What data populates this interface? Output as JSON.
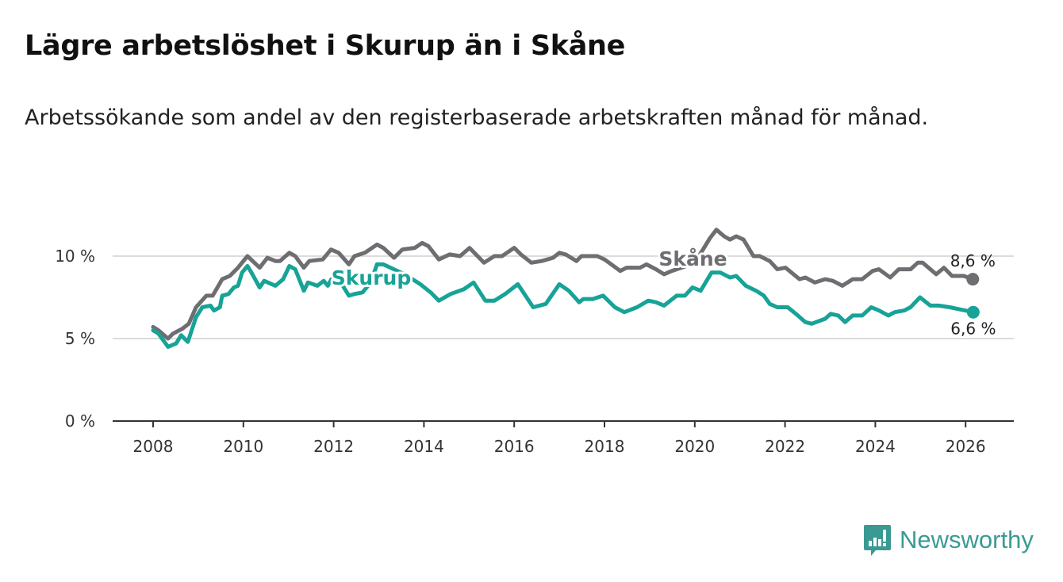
{
  "title": "Lägre arbetslöshet i Skurup än i Skåne",
  "subtitle": "Arbetssökande som andel av den registerbaserade arbetskraften månad för månad.",
  "brand": {
    "name": "Newsworthy",
    "color": "#3a9a93",
    "icon": "chart-speech-bubble-icon"
  },
  "chart_data": {
    "type": "line",
    "title": "Lägre arbetslöshet i Skurup än i Skåne",
    "xlabel": "",
    "ylabel": "",
    "xlim": [
      2007.8,
      2027.0
    ],
    "ylim": [
      0,
      12
    ],
    "grid": true,
    "x_ticks": [
      2008,
      2010,
      2012,
      2014,
      2016,
      2018,
      2020,
      2022,
      2024,
      2026
    ],
    "x_tick_labels": [
      "2008",
      "2010",
      "2012",
      "2014",
      "2016",
      "2018",
      "2020",
      "2022",
      "2024",
      "2026"
    ],
    "y_ticks": [
      0,
      5,
      10
    ],
    "y_tick_labels": [
      "0 %",
      "5 %",
      "10 %"
    ],
    "series": [
      {
        "name": "Skåne",
        "color": "#6d6d72",
        "end_label": "8,6 %",
        "x": [
          2008.0,
          2008.12,
          2008.33,
          2008.44,
          2008.65,
          2008.79,
          2008.95,
          2009.18,
          2009.32,
          2009.53,
          2009.7,
          2009.88,
          2010.09,
          2010.36,
          2010.53,
          2010.71,
          2010.81,
          2011.02,
          2011.15,
          2011.34,
          2011.46,
          2011.76,
          2011.94,
          2012.11,
          2012.34,
          2012.46,
          2012.69,
          2012.96,
          2013.1,
          2013.34,
          2013.52,
          2013.8,
          2013.96,
          2014.1,
          2014.33,
          2014.57,
          2014.8,
          2015.01,
          2015.33,
          2015.56,
          2015.73,
          2016.0,
          2016.15,
          2016.38,
          2016.61,
          2016.86,
          2017.0,
          2017.14,
          2017.38,
          2017.49,
          2017.84,
          2018.0,
          2018.35,
          2018.49,
          2018.79,
          2018.93,
          2019.14,
          2019.32,
          2019.49,
          2019.81,
          2020.07,
          2020.34,
          2020.48,
          2020.65,
          2020.78,
          2020.92,
          2021.08,
          2021.3,
          2021.44,
          2021.66,
          2021.83,
          2022.01,
          2022.32,
          2022.45,
          2022.66,
          2022.89,
          2023.06,
          2023.27,
          2023.5,
          2023.71,
          2023.94,
          2024.08,
          2024.33,
          2024.52,
          2024.78,
          2024.94,
          2025.05,
          2025.35,
          2025.52,
          2025.7,
          2025.96,
          2026.16
        ],
        "values": [
          5.7,
          5.5,
          5.0,
          5.3,
          5.6,
          5.9,
          6.9,
          7.6,
          7.6,
          8.6,
          8.8,
          9.3,
          10.0,
          9.3,
          9.9,
          9.7,
          9.7,
          10.2,
          10.0,
          9.3,
          9.7,
          9.8,
          10.4,
          10.2,
          9.5,
          10.0,
          10.2,
          10.7,
          10.5,
          9.9,
          10.4,
          10.5,
          10.8,
          10.6,
          9.8,
          10.1,
          10.0,
          10.5,
          9.6,
          10.0,
          10.0,
          10.5,
          10.1,
          9.6,
          9.7,
          9.9,
          10.2,
          10.1,
          9.7,
          10.0,
          10.0,
          9.8,
          9.1,
          9.3,
          9.3,
          9.5,
          9.2,
          8.9,
          9.1,
          9.4,
          9.9,
          11.1,
          11.6,
          11.2,
          11.0,
          11.2,
          11.0,
          10.0,
          10.0,
          9.7,
          9.2,
          9.3,
          8.6,
          8.7,
          8.4,
          8.6,
          8.5,
          8.2,
          8.6,
          8.6,
          9.1,
          9.2,
          8.7,
          9.2,
          9.2,
          9.6,
          9.6,
          8.9,
          9.3,
          8.8,
          8.8,
          8.6
        ]
      },
      {
        "name": "Skurup",
        "color": "#17a397",
        "end_label": "6,6 %",
        "x": [
          2008.0,
          2008.12,
          2008.33,
          2008.51,
          2008.62,
          2008.77,
          2008.95,
          2009.09,
          2009.27,
          2009.35,
          2009.48,
          2009.53,
          2009.67,
          2009.79,
          2009.88,
          2009.97,
          2010.09,
          2010.18,
          2010.36,
          2010.46,
          2010.71,
          2010.88,
          2011.02,
          2011.15,
          2011.34,
          2011.43,
          2011.64,
          2011.78,
          2011.87,
          2011.95,
          2012.11,
          2012.34,
          2012.46,
          2012.64,
          2012.82,
          2012.96,
          2013.1,
          2013.57,
          2013.92,
          2014.15,
          2014.33,
          2014.59,
          2014.89,
          2015.1,
          2015.36,
          2015.56,
          2015.8,
          2016.08,
          2016.42,
          2016.7,
          2017.0,
          2017.21,
          2017.44,
          2017.53,
          2017.74,
          2017.97,
          2018.23,
          2018.44,
          2018.72,
          2018.97,
          2019.14,
          2019.32,
          2019.6,
          2019.78,
          2019.95,
          2020.13,
          2020.37,
          2020.57,
          2020.78,
          2020.92,
          2021.13,
          2021.36,
          2021.53,
          2021.66,
          2021.83,
          2022.06,
          2022.24,
          2022.45,
          2022.59,
          2022.89,
          2023.01,
          2023.18,
          2023.33,
          2023.5,
          2023.71,
          2023.91,
          2024.08,
          2024.29,
          2024.43,
          2024.64,
          2024.78,
          2024.99,
          2025.22,
          2025.4,
          2025.65,
          2025.82,
          2026.17
        ],
        "values": [
          5.5,
          5.3,
          4.5,
          4.7,
          5.2,
          4.8,
          6.3,
          6.9,
          7.0,
          6.7,
          6.9,
          7.6,
          7.7,
          8.1,
          8.2,
          9.0,
          9.4,
          9.0,
          8.1,
          8.5,
          8.2,
          8.6,
          9.4,
          9.2,
          7.9,
          8.4,
          8.2,
          8.5,
          8.2,
          8.6,
          8.6,
          7.6,
          7.7,
          7.8,
          8.4,
          9.5,
          9.5,
          8.9,
          8.3,
          7.8,
          7.3,
          7.7,
          8.0,
          8.4,
          7.3,
          7.3,
          7.7,
          8.3,
          6.9,
          7.1,
          8.3,
          7.9,
          7.2,
          7.4,
          7.4,
          7.6,
          6.9,
          6.6,
          6.9,
          7.3,
          7.2,
          7.0,
          7.6,
          7.6,
          8.1,
          7.9,
          9.0,
          9.0,
          8.7,
          8.8,
          8.2,
          7.9,
          7.6,
          7.1,
          6.9,
          6.9,
          6.5,
          6.0,
          5.9,
          6.2,
          6.5,
          6.4,
          6.0,
          6.4,
          6.4,
          6.9,
          6.7,
          6.4,
          6.6,
          6.7,
          6.9,
          7.5,
          7.0,
          7.0,
          6.9,
          6.8,
          6.6
        ]
      }
    ],
    "annotations": [
      {
        "text": "Skåne",
        "series": "Skåne",
        "x": 2020.1
      },
      {
        "text": "Skurup",
        "series": "Skurup",
        "x": 2013.8
      }
    ]
  }
}
